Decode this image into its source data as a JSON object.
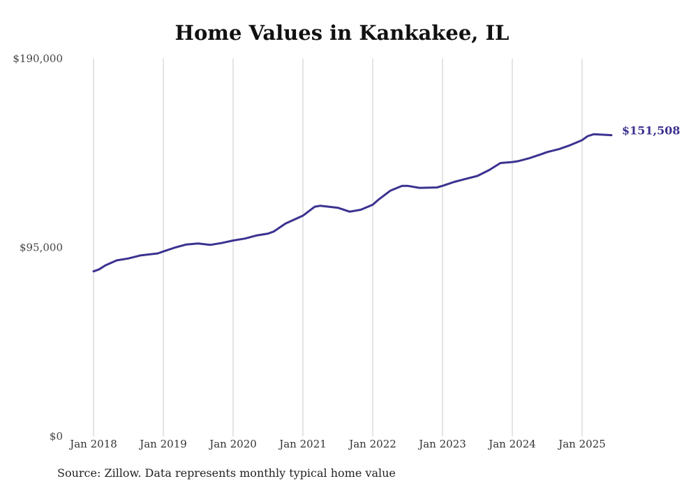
{
  "chart_data": {
    "type": "line",
    "title": "Home Values in Kankakee, IL",
    "xlabel": "",
    "ylabel": "",
    "ylim": [
      0,
      190000
    ],
    "y_ticks": [
      {
        "value": 0,
        "label": "$0"
      },
      {
        "value": 95000,
        "label": "$95,000"
      },
      {
        "value": 190000,
        "label": "$190,000"
      }
    ],
    "x_ticks": [
      {
        "value": 2018.0,
        "label": "Jan 2018"
      },
      {
        "value": 2019.0,
        "label": "Jan 2019"
      },
      {
        "value": 2020.0,
        "label": "Jan 2020"
      },
      {
        "value": 2021.0,
        "label": "Jan 2021"
      },
      {
        "value": 2022.0,
        "label": "Jan 2022"
      },
      {
        "value": 2023.0,
        "label": "Jan 2023"
      },
      {
        "value": 2024.0,
        "label": "Jan 2024"
      },
      {
        "value": 2025.0,
        "label": "Jan 2025"
      }
    ],
    "xlim": [
      2018.0,
      2025.42
    ],
    "grid": "vertical",
    "series": [
      {
        "color": "#3b3290",
        "end_label": "$151,508",
        "x": [
          2018.0,
          2018.08,
          2018.17,
          2018.33,
          2018.5,
          2018.67,
          2018.92,
          2019.0,
          2019.17,
          2019.33,
          2019.5,
          2019.67,
          2019.83,
          2020.0,
          2020.17,
          2020.33,
          2020.5,
          2020.58,
          2020.75,
          2021.0,
          2021.17,
          2021.25,
          2021.5,
          2021.67,
          2021.83,
          2022.0,
          2022.08,
          2022.25,
          2022.42,
          2022.5,
          2022.67,
          2022.92,
          2023.0,
          2023.17,
          2023.33,
          2023.5,
          2023.67,
          2023.83,
          2024.0,
          2024.08,
          2024.25,
          2024.42,
          2024.5,
          2024.67,
          2024.83,
          2025.0,
          2025.08,
          2025.17,
          2025.42
        ],
        "y": [
          83000,
          84000,
          86000,
          88500,
          89500,
          91000,
          92000,
          93000,
          95000,
          96500,
          97000,
          96300,
          97200,
          98500,
          99500,
          101000,
          102000,
          103000,
          107000,
          111000,
          115500,
          116000,
          115000,
          113000,
          114000,
          116500,
          119000,
          123500,
          126000,
          126000,
          125000,
          125200,
          126000,
          128000,
          129500,
          131000,
          134000,
          137500,
          138000,
          138400,
          140000,
          142000,
          143000,
          144500,
          146500,
          149000,
          151000,
          152000,
          151508
        ]
      }
    ]
  },
  "source": "Source: Zillow. Data represents monthly typical home value"
}
